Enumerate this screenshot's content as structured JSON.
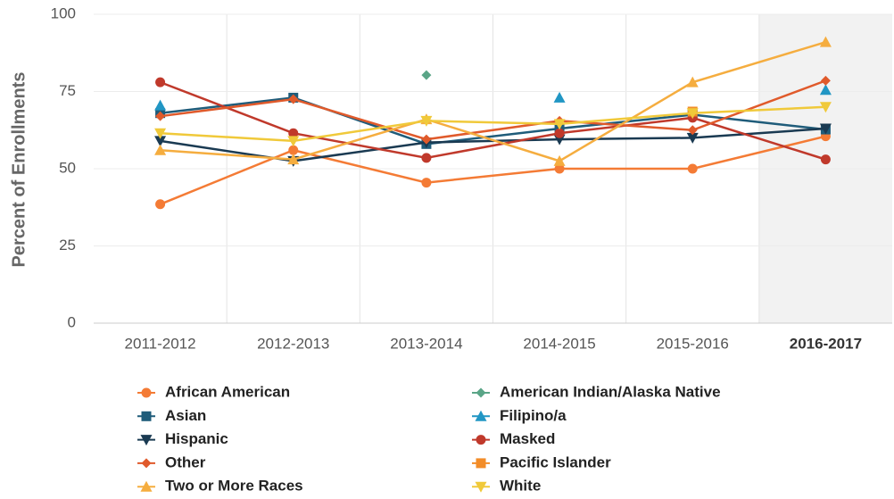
{
  "chart_data": {
    "type": "line",
    "ylabel": "Percent of Enrollments",
    "categories": [
      "2011-2012",
      "2012-2013",
      "2013-2014",
      "2014-2015",
      "2015-2016",
      "2016-2017"
    ],
    "highlighted_category": 5,
    "ylim": [
      0,
      100
    ],
    "yticks": [
      0,
      25,
      50,
      75,
      100
    ],
    "grid": true,
    "series": [
      {
        "name": "African American",
        "color": "#f47b35",
        "marker": "circle",
        "values": [
          38.5,
          56,
          45.5,
          50,
          50,
          60.5
        ]
      },
      {
        "name": "American Indian/Alaska Native",
        "color": "#5aa587",
        "marker": "diamond",
        "values": [
          null,
          null,
          80.3,
          null,
          null,
          null
        ]
      },
      {
        "name": "Asian",
        "color": "#1f5c7a",
        "marker": "square",
        "values": [
          68,
          73,
          58,
          63,
          67.5,
          62.7
        ]
      },
      {
        "name": "Filipino/a",
        "color": "#2196c4",
        "marker": "triangle",
        "values": [
          70.5,
          null,
          null,
          73,
          null,
          75.5
        ]
      },
      {
        "name": "Hispanic",
        "color": "#1a3a52",
        "marker": "triangle-down",
        "values": [
          59,
          52.5,
          58.5,
          59.5,
          60,
          63
        ]
      },
      {
        "name": "Masked",
        "color": "#c0392b",
        "marker": "circle",
        "values": [
          78,
          61.5,
          53.5,
          61.5,
          66.5,
          53
        ]
      },
      {
        "name": "Other",
        "color": "#e05a2b",
        "marker": "diamond",
        "values": [
          67,
          72.5,
          59.5,
          65.5,
          62.5,
          78.5
        ]
      },
      {
        "name": "Pacific Islander",
        "color": "#f28c28",
        "marker": "square",
        "values": [
          null,
          null,
          null,
          null,
          68.5,
          null
        ]
      },
      {
        "name": "Two or More Races",
        "color": "#f5ad3f",
        "marker": "triangle",
        "values": [
          56,
          53,
          66,
          52.5,
          78,
          91
        ]
      },
      {
        "name": "White",
        "color": "#f0c93a",
        "marker": "triangle-down",
        "values": [
          61.5,
          59,
          65.5,
          64.5,
          68,
          70
        ]
      }
    ]
  }
}
